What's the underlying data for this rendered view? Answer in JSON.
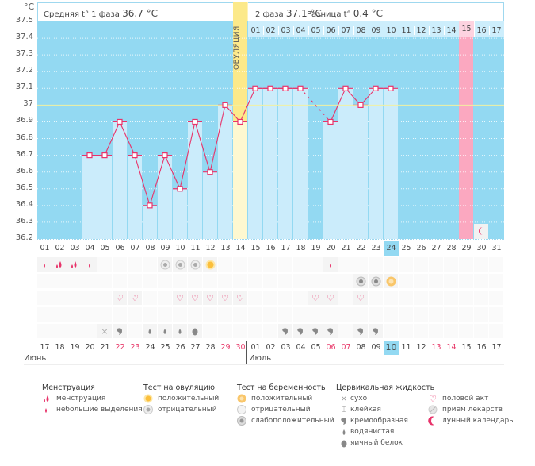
{
  "header": {
    "unit": "°C",
    "phase1_label": "Средняя t° 1 фаза",
    "phase1_value": "36.7 °C",
    "phase2_label": "2 фаза",
    "phase2_value": "37.1 °C",
    "diff_label": "Разница t°",
    "diff_value": "0.4 °C",
    "ovulation_label": "ОВУЛЯЦИЯ"
  },
  "chart_data": {
    "type": "bar",
    "title": "",
    "xlabel": "",
    "ylabel": "°C",
    "ylim": [
      36.2,
      37.5
    ],
    "yticks": [
      "37.5",
      "37.4",
      "37.3",
      "37.2",
      "37.1",
      "37",
      "36.9",
      "36.8",
      "36.7",
      "36.6",
      "36.5",
      "36.4",
      "36.3",
      "36.2"
    ],
    "coverline": 37.0,
    "cycle_days": [
      "01",
      "02",
      "03",
      "04",
      "05",
      "06",
      "07",
      "08",
      "09",
      "10",
      "11",
      "12",
      "13",
      "14",
      "15",
      "16",
      "17",
      "18",
      "19",
      "20",
      "21",
      "22",
      "23",
      "24",
      "25",
      "26",
      "27",
      "28",
      "29",
      "30",
      "31"
    ],
    "phase2_days": [
      "01",
      "02",
      "03",
      "04",
      "05",
      "06",
      "07",
      "08",
      "09",
      "10",
      "11",
      "12",
      "13",
      "14",
      "15",
      "16",
      "17"
    ],
    "ovulation_day_index": 13,
    "expected_period_day_index": 28,
    "moon_day_index": 29,
    "today_index": 23,
    "temperatures": [
      null,
      null,
      null,
      36.7,
      36.7,
      36.9,
      36.7,
      36.4,
      36.7,
      36.5,
      36.9,
      36.6,
      37.0,
      36.9,
      37.1,
      37.1,
      37.1,
      37.1,
      null,
      36.9,
      37.1,
      37.0,
      37.1,
      37.1,
      null,
      null,
      null,
      null,
      null,
      null,
      null
    ],
    "dashed_segments": [
      [
        17,
        19
      ]
    ],
    "calendar_dates": [
      "17",
      "18",
      "19",
      "20",
      "21",
      "22",
      "23",
      "24",
      "25",
      "26",
      "27",
      "28",
      "29",
      "30",
      "01",
      "02",
      "03",
      "04",
      "05",
      "06",
      "07",
      "08",
      "09",
      "10",
      "11",
      "12",
      "13",
      "14",
      "15",
      "16",
      "17"
    ],
    "weekend_indices": [
      5,
      6,
      12,
      13,
      19,
      20,
      26,
      27
    ],
    "months": [
      {
        "label": "Июнь",
        "start_index": 0
      },
      {
        "label": "Июль",
        "start_index": 14
      }
    ],
    "series": [
      {
        "name": "menstruation",
        "values": [
          "small",
          "heavy",
          "heavy",
          "small",
          null,
          null,
          null,
          null,
          null,
          null,
          null,
          null,
          null,
          null,
          null,
          null,
          null,
          null,
          null,
          "small",
          null,
          null,
          null,
          null,
          null,
          null,
          null,
          null,
          null,
          null,
          null
        ]
      },
      {
        "name": "ovulation_test",
        "values": [
          null,
          null,
          null,
          null,
          null,
          null,
          null,
          null,
          "negative",
          "negative",
          "negative",
          "positive",
          null,
          null,
          null,
          null,
          null,
          null,
          null,
          null,
          null,
          null,
          null,
          null,
          null,
          null,
          null,
          null,
          null,
          null,
          null
        ]
      },
      {
        "name": "pregnancy_test",
        "values": [
          null,
          null,
          null,
          null,
          null,
          null,
          null,
          null,
          null,
          null,
          null,
          null,
          null,
          null,
          null,
          null,
          null,
          null,
          null,
          null,
          null,
          "weak",
          "weak",
          "positive",
          null,
          null,
          null,
          null,
          null,
          null,
          null
        ]
      },
      {
        "name": "intercourse",
        "values": [
          null,
          null,
          null,
          null,
          null,
          true,
          true,
          null,
          null,
          true,
          true,
          true,
          true,
          true,
          null,
          null,
          null,
          null,
          true,
          true,
          null,
          true,
          null,
          null,
          null,
          null,
          null,
          null,
          null,
          null,
          null
        ]
      },
      {
        "name": "medication",
        "values": [
          null,
          null,
          null,
          null,
          null,
          null,
          null,
          null,
          null,
          null,
          null,
          null,
          null,
          null,
          null,
          null,
          null,
          null,
          null,
          null,
          null,
          null,
          null,
          null,
          null,
          null,
          null,
          null,
          null,
          null,
          null
        ]
      },
      {
        "name": "cervical_fluid",
        "values": [
          null,
          null,
          null,
          null,
          "dry",
          "creamy",
          null,
          "watery",
          "watery",
          "watery",
          "eggwhite",
          null,
          null,
          null,
          null,
          null,
          "creamy",
          "creamy",
          "creamy",
          "creamy",
          null,
          "creamy",
          "creamy",
          null,
          null,
          null,
          null,
          null,
          null,
          null,
          null
        ]
      }
    ]
  },
  "legend": {
    "menstruation": {
      "title": "Менструация",
      "items": [
        "менструация",
        "небольшие выделения"
      ]
    },
    "ovulation_test": {
      "title": "Тест на овуляцию",
      "items": [
        "положительный",
        "отрицательный"
      ]
    },
    "pregnancy_test": {
      "title": "Тест на беременность",
      "items": [
        "положительный",
        "отрицательный",
        "слабоположительный"
      ]
    },
    "cervical_fluid": {
      "title": "Цервикальная жидкость",
      "items": [
        "сухо",
        "клейкая",
        "кремообразная",
        "водянистая",
        "яичный белок"
      ]
    },
    "other": {
      "items": [
        "половой акт",
        "прием лекарств",
        "лунный календарь"
      ]
    }
  },
  "colors": {
    "chart_bg": "#93d9f2",
    "bar_fill": "#cbecfb",
    "line": "#e8336a",
    "ovulation": "#fce98a",
    "period": "#fba8c0",
    "coverline": "#f2f0a0",
    "weekend": "#e83a6a"
  }
}
